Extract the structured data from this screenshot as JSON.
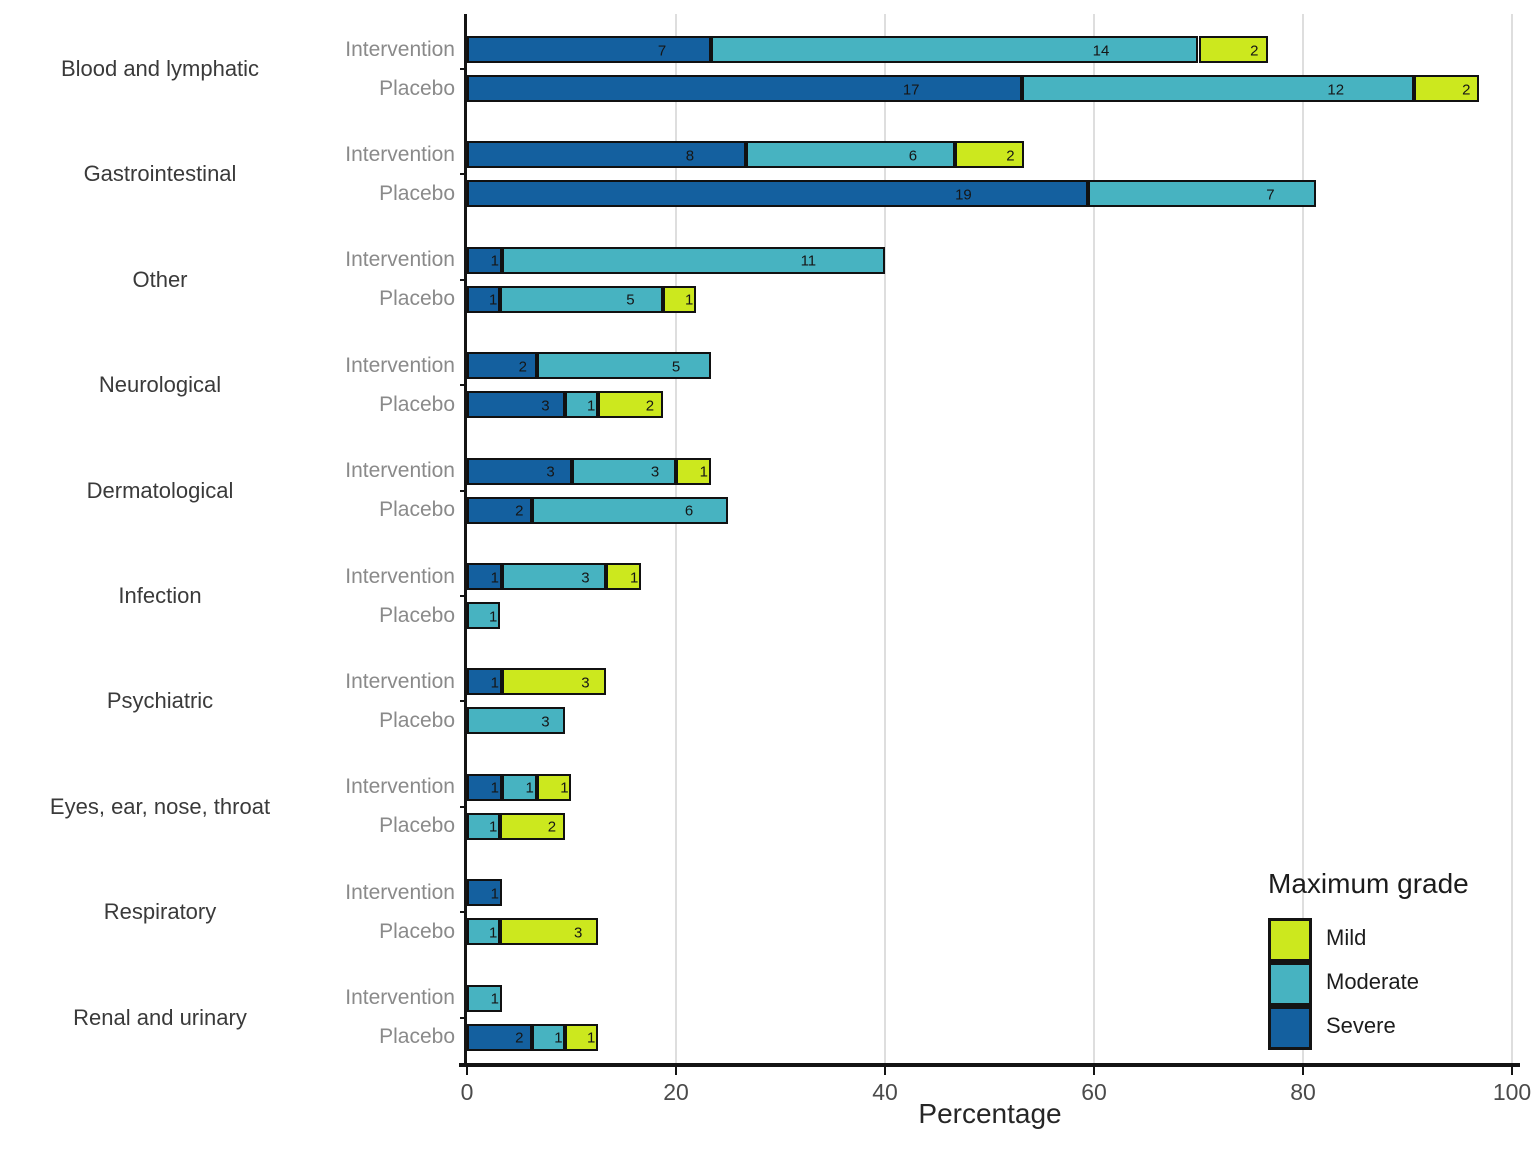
{
  "chart_data": {
    "type": "bar",
    "orientation": "horizontal",
    "stacked": true,
    "title": "",
    "xlabel": "Percentage",
    "xlim": [
      0,
      100
    ],
    "xticks": [
      0,
      20,
      40,
      60,
      80,
      100
    ],
    "grid": "vertical-light",
    "grade_colors": {
      "Severe": "#14609f",
      "Moderate": "#47b3c1",
      "Mild": "#cce81e"
    },
    "legend": {
      "title": "Maximum grade",
      "position": "bottom-right",
      "items": [
        {
          "label": "Mild",
          "color": "#cce81e"
        },
        {
          "label": "Moderate",
          "color": "#47b3c1"
        },
        {
          "label": "Severe",
          "color": "#14609f"
        }
      ]
    },
    "groups": [
      {
        "category": "Blood and lymphatic",
        "rows": [
          {
            "label": "Intervention",
            "segments": [
              {
                "grade": "Severe",
                "count": 7,
                "pct": 23.33
              },
              {
                "grade": "Moderate",
                "count": 14,
                "pct": 46.67
              },
              {
                "grade": "Mild",
                "count": 2,
                "pct": 6.67
              }
            ]
          },
          {
            "label": "Placebo",
            "segments": [
              {
                "grade": "Severe",
                "count": 17,
                "pct": 53.13
              },
              {
                "grade": "Moderate",
                "count": 12,
                "pct": 37.5
              },
              {
                "grade": "Mild",
                "count": 2,
                "pct": 6.25
              }
            ]
          }
        ]
      },
      {
        "category": "Gastrointestinal",
        "rows": [
          {
            "label": "Intervention",
            "segments": [
              {
                "grade": "Severe",
                "count": 8,
                "pct": 26.67
              },
              {
                "grade": "Moderate",
                "count": 6,
                "pct": 20
              },
              {
                "grade": "Mild",
                "count": 2,
                "pct": 6.67
              }
            ]
          },
          {
            "label": "Placebo",
            "segments": [
              {
                "grade": "Severe",
                "count": 19,
                "pct": 59.38
              },
              {
                "grade": "Moderate",
                "count": 7,
                "pct": 21.88
              }
            ]
          }
        ]
      },
      {
        "category": "Other",
        "rows": [
          {
            "label": "Intervention",
            "segments": [
              {
                "grade": "Severe",
                "count": 1,
                "pct": 3.33
              },
              {
                "grade": "Moderate",
                "count": 11,
                "pct": 36.67
              }
            ]
          },
          {
            "label": "Placebo",
            "segments": [
              {
                "grade": "Severe",
                "count": 1,
                "pct": 3.13
              },
              {
                "grade": "Moderate",
                "count": 5,
                "pct": 15.63
              },
              {
                "grade": "Mild",
                "count": 1,
                "pct": 3.13
              }
            ]
          }
        ]
      },
      {
        "category": "Neurological",
        "rows": [
          {
            "label": "Intervention",
            "segments": [
              {
                "grade": "Severe",
                "count": 2,
                "pct": 6.67
              },
              {
                "grade": "Moderate",
                "count": 5,
                "pct": 16.67
              }
            ]
          },
          {
            "label": "Placebo",
            "segments": [
              {
                "grade": "Severe",
                "count": 3,
                "pct": 9.38
              },
              {
                "grade": "Moderate",
                "count": 1,
                "pct": 3.13
              },
              {
                "grade": "Mild",
                "count": 2,
                "pct": 6.25
              }
            ]
          }
        ]
      },
      {
        "category": "Dermatological",
        "rows": [
          {
            "label": "Intervention",
            "segments": [
              {
                "grade": "Severe",
                "count": 3,
                "pct": 10
              },
              {
                "grade": "Moderate",
                "count": 3,
                "pct": 10
              },
              {
                "grade": "Mild",
                "count": 1,
                "pct": 3.33
              }
            ]
          },
          {
            "label": "Placebo",
            "segments": [
              {
                "grade": "Severe",
                "count": 2,
                "pct": 6.25
              },
              {
                "grade": "Moderate",
                "count": 6,
                "pct": 18.75
              }
            ]
          }
        ]
      },
      {
        "category": "Infection",
        "rows": [
          {
            "label": "Intervention",
            "segments": [
              {
                "grade": "Severe",
                "count": 1,
                "pct": 3.33
              },
              {
                "grade": "Moderate",
                "count": 3,
                "pct": 10
              },
              {
                "grade": "Mild",
                "count": 1,
                "pct": 3.33
              }
            ]
          },
          {
            "label": "Placebo",
            "segments": [
              {
                "grade": "Moderate",
                "count": 1,
                "pct": 3.13
              }
            ]
          }
        ]
      },
      {
        "category": "Psychiatric",
        "rows": [
          {
            "label": "Intervention",
            "segments": [
              {
                "grade": "Severe",
                "count": 1,
                "pct": 3.33
              },
              {
                "grade": "Mild",
                "count": 3,
                "pct": 10
              }
            ]
          },
          {
            "label": "Placebo",
            "segments": [
              {
                "grade": "Moderate",
                "count": 3,
                "pct": 9.38
              }
            ]
          }
        ]
      },
      {
        "category": "Eyes, ear, nose, throat",
        "rows": [
          {
            "label": "Intervention",
            "segments": [
              {
                "grade": "Severe",
                "count": 1,
                "pct": 3.33
              },
              {
                "grade": "Moderate",
                "count": 1,
                "pct": 3.33
              },
              {
                "grade": "Mild",
                "count": 1,
                "pct": 3.33
              }
            ]
          },
          {
            "label": "Placebo",
            "segments": [
              {
                "grade": "Moderate",
                "count": 1,
                "pct": 3.13
              },
              {
                "grade": "Mild",
                "count": 2,
                "pct": 6.25
              }
            ]
          }
        ]
      },
      {
        "category": "Respiratory",
        "rows": [
          {
            "label": "Intervention",
            "segments": [
              {
                "grade": "Severe",
                "count": 1,
                "pct": 3.33
              }
            ]
          },
          {
            "label": "Placebo",
            "segments": [
              {
                "grade": "Moderate",
                "count": 1,
                "pct": 3.13
              },
              {
                "grade": "Mild",
                "count": 3,
                "pct": 9.38
              }
            ]
          }
        ]
      },
      {
        "category": "Renal and urinary",
        "rows": [
          {
            "label": "Intervention",
            "segments": [
              {
                "grade": "Moderate",
                "count": 1,
                "pct": 3.33
              }
            ]
          },
          {
            "label": "Placebo",
            "segments": [
              {
                "grade": "Severe",
                "count": 2,
                "pct": 6.25
              },
              {
                "grade": "Moderate",
                "count": 1,
                "pct": 3.13
              },
              {
                "grade": "Mild",
                "count": 1,
                "pct": 3.13
              }
            ]
          }
        ]
      }
    ]
  }
}
